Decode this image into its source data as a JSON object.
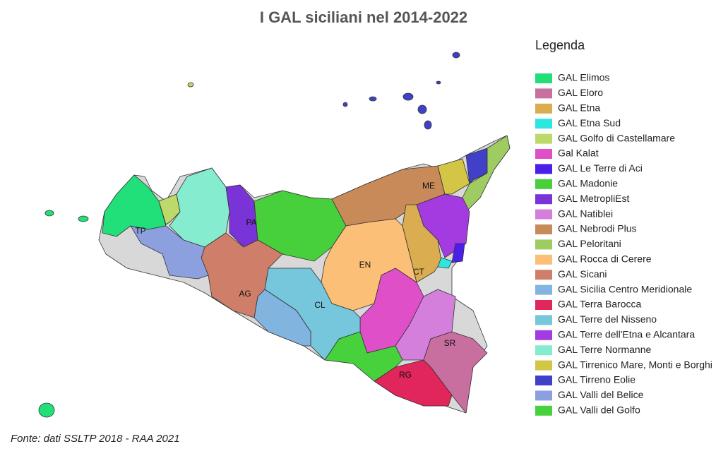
{
  "title": "I GAL siciliani nel 2014-2022",
  "legend": {
    "title": "Legenda",
    "items": [
      {
        "label": "GAL Elimos",
        "color": "#21e07a"
      },
      {
        "label": "GAL Eloro",
        "color": "#c96fa0"
      },
      {
        "label": "GAL Etna",
        "color": "#d9ad50"
      },
      {
        "label": "GAL Etna Sud",
        "color": "#2de6e0"
      },
      {
        "label": "GAL Golfo di Castellamare",
        "color": "#bcd96a"
      },
      {
        "label": "Gal Kalat",
        "color": "#de4fc8"
      },
      {
        "label": "GAL Le Terre di Aci",
        "color": "#4a1fe8"
      },
      {
        "label": "GAL Madonie",
        "color": "#47cf3c"
      },
      {
        "label": "GAL MetropliEst",
        "color": "#7a33d6"
      },
      {
        "label": "GAL Natiblei",
        "color": "#d47fdb"
      },
      {
        "label": "GAL Nebrodi Plus",
        "color": "#c98a5a"
      },
      {
        "label": "GAL Peloritani",
        "color": "#9ecc60"
      },
      {
        "label": "GAL Rocca di Cerere",
        "color": "#fbbf78"
      },
      {
        "label": "GAL Sicani",
        "color": "#cf7e6a"
      },
      {
        "label": "GAL Sicilia Centro Meridionale",
        "color": "#82b4e0"
      },
      {
        "label": "GAL Terra Barocca",
        "color": "#e0265a"
      },
      {
        "label": "GAL Terre del Nisseno",
        "color": "#76c6dc"
      },
      {
        "label": "GAL Terre dell'Etna e Alcantara",
        "color": "#a33be0"
      },
      {
        "label": "GAL Terre Normanne",
        "color": "#86ecd0"
      },
      {
        "label": "GAL Tirrenico Mare, Monti e Borghi",
        "color": "#d3c545"
      },
      {
        "label": "GAL Tirreno Eolie",
        "color": "#4040c8"
      },
      {
        "label": "GAL Valli del Belice",
        "color": "#8ca0e0"
      },
      {
        "label": "GAL Valli del Golfo",
        "color": "#47d13c"
      }
    ]
  },
  "province_labels": [
    "TP",
    "PA",
    "ME",
    "AG",
    "EN",
    "CL",
    "CT",
    "RG",
    "SR"
  ],
  "source": "Fonte: dati SSLTP 2018 - RAA  2021"
}
